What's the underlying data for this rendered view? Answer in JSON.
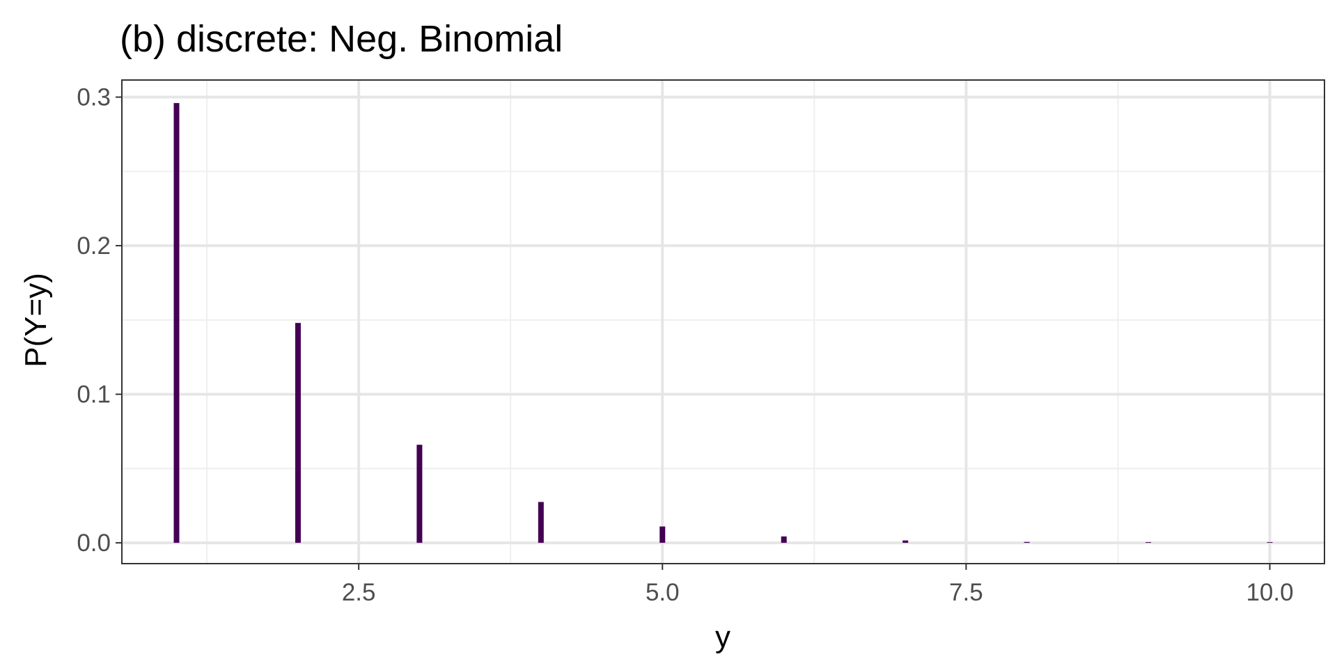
{
  "chart_data": {
    "type": "bar",
    "title": "(b) discrete: Neg. Binomial",
    "xlabel": "y",
    "ylabel": "P(Y=y)",
    "x": [
      1,
      2,
      3,
      4,
      5,
      6,
      7,
      8,
      9,
      10
    ],
    "values": [
      0.296,
      0.148,
      0.066,
      0.0275,
      0.011,
      0.0043,
      0.0016,
      0.0006,
      0.0002,
      0.0001
    ],
    "xlim": [
      0.55,
      10.45
    ],
    "ylim": [
      -0.014,
      0.3115
    ],
    "x_ticks": [
      2.5,
      5.0,
      7.5,
      10.0
    ],
    "x_tick_labels": [
      "2.5",
      "5.0",
      "7.5",
      "10.0"
    ],
    "y_ticks": [
      0.0,
      0.1,
      0.2,
      0.3
    ],
    "y_tick_labels": [
      "0.0",
      "0.1",
      "0.2",
      "0.3"
    ],
    "grid": true,
    "legend": "none",
    "colors": {
      "bar": "#440154",
      "grid_major": "#e6e6e6",
      "grid_minor": "#efefef",
      "border": "#333333",
      "tick_label": "#4d4d4d",
      "text": "#000000"
    }
  }
}
